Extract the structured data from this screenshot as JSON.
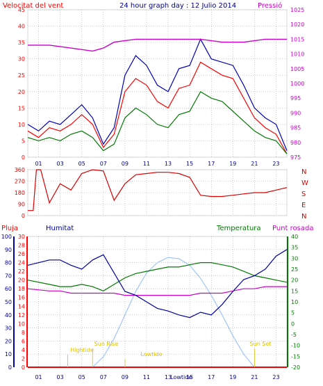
{
  "colors": {
    "frame": "#dadada",
    "grid": "#a8a8a8",
    "wind": "#ff0000",
    "gust": "#0000b8",
    "dir": "#d80000",
    "pressure": "#cc00cc",
    "humidity": "#0000a0",
    "temp": "#007a00",
    "dew": "#cc00cc",
    "rain": "#ff0000",
    "solar": "#a0c4ff",
    "marker": "#e0c000",
    "title": "#00008b"
  },
  "chart_data": [
    {
      "type": "line",
      "title": "24 hour graph day : 12 Julio 2014",
      "left_label": "Velocitat del vent",
      "right_label": "Pressió",
      "x_ticks": [
        "01",
        "03",
        "05",
        "07",
        "09",
        "11",
        "13",
        "15",
        "17",
        "19",
        "21",
        "23"
      ],
      "ylim_left": [
        0,
        45
      ],
      "ylim_right": [
        975,
        1025
      ],
      "y_ticks_left": [
        0,
        5,
        10,
        15,
        20,
        25,
        30,
        35,
        40,
        45
      ],
      "y_ticks_right": [
        975,
        980,
        985,
        990,
        995,
        1000,
        1005,
        1010,
        1015,
        1020,
        1025
      ],
      "series": [
        {
          "key": "gust",
          "axis": "left",
          "x": [
            0,
            1,
            2,
            3,
            4,
            5,
            6,
            7,
            8,
            9,
            10,
            11,
            12,
            13,
            14,
            15,
            16,
            17,
            18,
            19,
            20,
            21,
            22,
            23,
            24
          ],
          "values": [
            10,
            8,
            11,
            10,
            13,
            16,
            12,
            4,
            9,
            25,
            31,
            28,
            22,
            20,
            27,
            28,
            36,
            30,
            29,
            28,
            22,
            15,
            12,
            10,
            2
          ]
        },
        {
          "key": "wind",
          "axis": "left",
          "x": [
            0,
            1,
            2,
            3,
            4,
            5,
            6,
            7,
            8,
            9,
            10,
            11,
            12,
            13,
            14,
            15,
            16,
            17,
            18,
            19,
            20,
            21,
            22,
            23,
            24
          ],
          "values": [
            8,
            6,
            9,
            8,
            10,
            13,
            10,
            3,
            7,
            20,
            24,
            22,
            17,
            15,
            21,
            22,
            29,
            27,
            25,
            24,
            18,
            12,
            9,
            7,
            1
          ]
        },
        {
          "key": "temp",
          "axis": "left",
          "x": [
            0,
            1,
            2,
            3,
            4,
            5,
            6,
            7,
            8,
            9,
            10,
            11,
            12,
            13,
            14,
            15,
            16,
            17,
            18,
            19,
            20,
            21,
            22,
            23,
            24
          ],
          "values": [
            6,
            5,
            6,
            5,
            7,
            8,
            6,
            2,
            4,
            12,
            15,
            13,
            10,
            9,
            13,
            14,
            20,
            18,
            17,
            14,
            11,
            8,
            6,
            5,
            1
          ]
        },
        {
          "key": "pressure",
          "axis": "right",
          "x": [
            0,
            2,
            4,
            6,
            7,
            8,
            10,
            12,
            14,
            16,
            18,
            20,
            22,
            24
          ],
          "values": [
            1013,
            1013,
            1012,
            1011,
            1012,
            1014,
            1015,
            1015,
            1015,
            1015,
            1014,
            1014,
            1015,
            1015
          ]
        }
      ]
    },
    {
      "type": "line",
      "title": "",
      "y_ticks": [
        0,
        90,
        180,
        270,
        360
      ],
      "ylim": [
        0,
        360
      ],
      "compass": [
        "N",
        "W",
        "S",
        "E",
        "N"
      ],
      "series": [
        {
          "key": "dir",
          "x": [
            0,
            0.5,
            0.8,
            1,
            1.2,
            2,
            3,
            4,
            5,
            6,
            7,
            8,
            9,
            10,
            11,
            12,
            13,
            14,
            15,
            16,
            17,
            18,
            19,
            20,
            21,
            22,
            23,
            24
          ],
          "values": [
            40,
            40,
            360,
            360,
            360,
            100,
            250,
            200,
            330,
            360,
            350,
            120,
            250,
            320,
            330,
            340,
            340,
            330,
            300,
            160,
            150,
            150,
            160,
            170,
            180,
            180,
            200,
            220
          ]
        }
      ]
    },
    {
      "type": "line",
      "title": "",
      "labels": {
        "rain": "Pluja",
        "humidity": "Humitat",
        "temp": "Temperatura",
        "dew": "Punt rosada"
      },
      "x_ticks": [
        "01",
        "03",
        "05",
        "07",
        "09",
        "11",
        "13",
        "Lowtide",
        "15",
        "17",
        "19",
        "21",
        "23"
      ],
      "ylim_humidity": [
        0,
        100
      ],
      "ylim_rain": [
        0,
        30
      ],
      "ylim_temp": [
        -20,
        40
      ],
      "y_ticks_humidity": [
        0,
        10,
        20,
        30,
        40,
        50,
        60,
        70,
        80,
        90,
        100
      ],
      "y_ticks_rain": [
        0,
        2,
        4,
        6,
        8,
        10,
        12,
        14,
        16,
        18,
        20,
        22,
        24,
        26,
        28,
        30
      ],
      "y_ticks_temp": [
        -20,
        -15,
        -10,
        -5,
        0,
        5,
        10,
        15,
        20,
        25,
        30,
        35,
        40
      ],
      "annotations": [
        "Hightide",
        "Sun Rise",
        "Lowtide",
        "Sun Set"
      ],
      "series": [
        {
          "key": "humidity",
          "axis": "humidity",
          "x": [
            0,
            2,
            3,
            4,
            5,
            6,
            7,
            8,
            9,
            10,
            11,
            12,
            13,
            14,
            15,
            16,
            17,
            18,
            19,
            20,
            21,
            22,
            23,
            24
          ],
          "values": [
            78,
            82,
            82,
            78,
            75,
            82,
            86,
            72,
            58,
            55,
            50,
            45,
            43,
            40,
            38,
            42,
            40,
            48,
            58,
            67,
            70,
            75,
            85,
            90
          ]
        },
        {
          "key": "temp",
          "axis": "temp",
          "x": [
            0,
            2,
            3,
            4,
            5,
            6,
            7,
            8,
            9,
            10,
            11,
            12,
            13,
            14,
            15,
            16,
            17,
            18,
            19,
            20,
            21,
            22,
            23,
            24
          ],
          "values": [
            20,
            18,
            17,
            17,
            18,
            17,
            15,
            18,
            21,
            23,
            24,
            25,
            26,
            26,
            27,
            28,
            28,
            27,
            26,
            24,
            22,
            21,
            20,
            19
          ]
        },
        {
          "key": "dew",
          "axis": "temp",
          "x": [
            0,
            2,
            3,
            4,
            5,
            6,
            7,
            8,
            9,
            10,
            11,
            12,
            13,
            14,
            15,
            16,
            17,
            18,
            19,
            20,
            21,
            22,
            23,
            24
          ],
          "values": [
            16,
            15,
            15,
            14,
            14,
            14,
            14,
            14,
            13,
            13,
            13,
            13,
            13,
            13,
            13,
            14,
            14,
            14,
            15,
            16,
            16,
            17,
            17,
            17
          ]
        },
        {
          "key": "solar",
          "axis": "humidity",
          "x": [
            6,
            7,
            8,
            9,
            10,
            11,
            12,
            13,
            14,
            15,
            16,
            17,
            18,
            19,
            20,
            21
          ],
          "values": [
            0,
            8,
            22,
            40,
            58,
            72,
            80,
            84,
            83,
            78,
            68,
            55,
            40,
            24,
            10,
            0
          ]
        },
        {
          "key": "rain",
          "axis": "rain",
          "x": [
            0,
            24
          ],
          "values": [
            0,
            0
          ]
        }
      ]
    }
  ]
}
